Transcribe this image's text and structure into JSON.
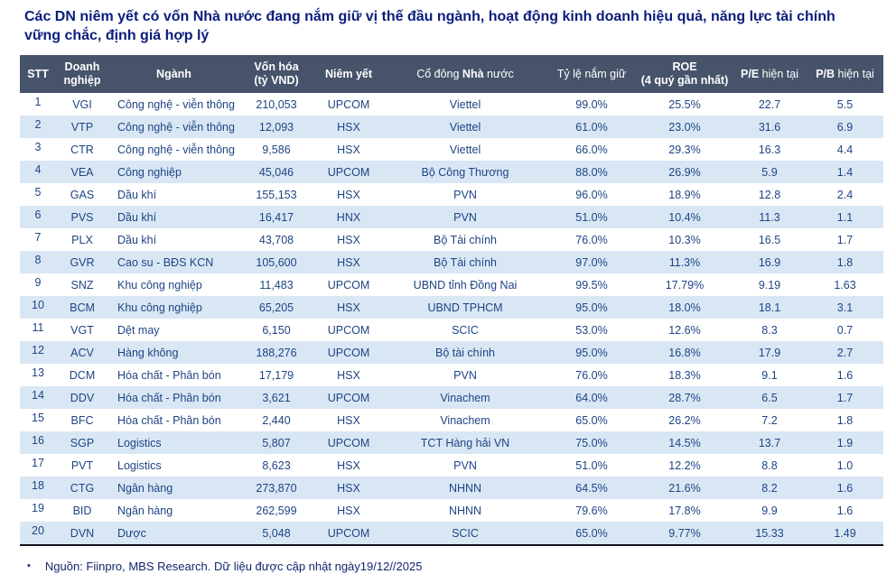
{
  "title": "Các DN niêm yết có vốn Nhà nước đang nắm giữ vị thế đầu ngành, hoạt động kinh doanh hiệu quả, năng lực tài chính vững chắc, định giá hợp lý",
  "colors": {
    "title_text": "#0a1d7c",
    "header_bg": "#46536a",
    "header_text": "#ffffff",
    "row_stripe": "#d9e7f5",
    "body_text": "#1e4483",
    "table_bottom_border": "#13131d"
  },
  "table": {
    "columns": [
      {
        "id": "stt",
        "parts": [
          {
            "t": "STT",
            "b": true
          }
        ]
      },
      {
        "id": "ticker",
        "parts": [
          {
            "t": "Doanh\nnghiệp",
            "b": true
          }
        ]
      },
      {
        "id": "nganh",
        "parts": [
          {
            "t": "Ngành",
            "b": true
          }
        ]
      },
      {
        "id": "vonhoa",
        "parts": [
          {
            "t": "Vốn hóa\n(tỷ VND)",
            "b": true
          }
        ]
      },
      {
        "id": "niemyet",
        "parts": [
          {
            "t": "Niêm yết",
            "b": true
          }
        ]
      },
      {
        "id": "codong",
        "parts": [
          {
            "t": "Cổ đông ",
            "b": false
          },
          {
            "t": "Nhà",
            "b": true
          },
          {
            "t": " nước",
            "b": false
          }
        ]
      },
      {
        "id": "tyle",
        "parts": [
          {
            "t": "Tỷ lệ nắm giữ",
            "b": false
          }
        ]
      },
      {
        "id": "roe",
        "parts": [
          {
            "t": "ROE\n(4 quý gần nhất)",
            "b": true
          }
        ]
      },
      {
        "id": "pe",
        "parts": [
          {
            "t": "P/E",
            "b": true
          },
          {
            "t": " hiện tại",
            "b": false
          }
        ]
      },
      {
        "id": "pb",
        "parts": [
          {
            "t": "P/B",
            "b": true
          },
          {
            "t": " hiện tại",
            "b": false
          }
        ]
      }
    ],
    "rows": [
      [
        "1",
        "VGI",
        "Công nghệ - viễn thông",
        "210,053",
        "UPCOM",
        "Viettel",
        "99.0%",
        "25.5%",
        "22.7",
        "5.5"
      ],
      [
        "2",
        "VTP",
        "Công nghệ - viễn thông",
        "12,093",
        "HSX",
        "Viettel",
        "61.0%",
        "23.0%",
        "31.6",
        "6.9"
      ],
      [
        "3",
        "CTR",
        "Công nghệ - viễn thông",
        "9,586",
        "HSX",
        "Viettel",
        "66.0%",
        "29.3%",
        "16.3",
        "4.4"
      ],
      [
        "4",
        "VEA",
        "Công nghiệp",
        "45,046",
        "UPCOM",
        "Bộ Công Thương",
        "88.0%",
        "26.9%",
        "5.9",
        "1.4"
      ],
      [
        "5",
        "GAS",
        "Dầu khí",
        "155,153",
        "HSX",
        "PVN",
        "96.0%",
        "18.9%",
        "12.8",
        "2.4"
      ],
      [
        "6",
        "PVS",
        "Dầu khí",
        "16,417",
        "HNX",
        "PVN",
        "51.0%",
        "10.4%",
        "11.3",
        "1.1"
      ],
      [
        "7",
        "PLX",
        "Dầu khí",
        "43,708",
        "HSX",
        "Bộ Tài chính",
        "76.0%",
        "10.3%",
        "16.5",
        "1.7"
      ],
      [
        "8",
        "GVR",
        "Cao su - BĐS KCN",
        "105,600",
        "HSX",
        "Bộ Tài chính",
        "97.0%",
        "11.3%",
        "16.9",
        "1.8"
      ],
      [
        "9",
        "SNZ",
        "Khu công nghiệp",
        "11,483",
        "UPCOM",
        "UBND tỉnh Đồng Nai",
        "99.5%",
        "17.79%",
        "9.19",
        "1.63"
      ],
      [
        "10",
        "BCM",
        "Khu công nghiệp",
        "65,205",
        "HSX",
        "UBND TPHCM",
        "95.0%",
        "18.0%",
        "18.1",
        "3.1"
      ],
      [
        "11",
        "VGT",
        "Dệt may",
        "6,150",
        "UPCOM",
        "SCIC",
        "53.0%",
        "12.6%",
        "8.3",
        "0.7"
      ],
      [
        "12",
        "ACV",
        "Hàng không",
        "188,276",
        "UPCOM",
        "Bộ tài chính",
        "95.0%",
        "16.8%",
        "17.9",
        "2.7"
      ],
      [
        "13",
        "DCM",
        "Hóa chất - Phân bón",
        "17,179",
        "HSX",
        "PVN",
        "76.0%",
        "18.3%",
        "9.1",
        "1.6"
      ],
      [
        "14",
        "DDV",
        "Hóa chất - Phân bón",
        "3,621",
        "UPCOM",
        "Vinachem",
        "64.0%",
        "28.7%",
        "6.5",
        "1.7"
      ],
      [
        "15",
        "BFC",
        "Hóa chất - Phân bón",
        "2,440",
        "HSX",
        "Vinachem",
        "65.0%",
        "26.2%",
        "7.2",
        "1.8"
      ],
      [
        "16",
        "SGP",
        "Logistics",
        "5,807",
        "UPCOM",
        "TCT Hàng hải VN",
        "75.0%",
        "14.5%",
        "13.7",
        "1.9"
      ],
      [
        "17",
        "PVT",
        "Logistics",
        "8,623",
        "HSX",
        "PVN",
        "51.0%",
        "12.2%",
        "8.8",
        "1.0"
      ],
      [
        "18",
        "CTG",
        "Ngân hàng",
        "273,870",
        "HSX",
        "NHNN",
        "64.5%",
        "21.6%",
        "8.2",
        "1.6"
      ],
      [
        "19",
        "BID",
        "Ngân hàng",
        "262,599",
        "HSX",
        "NHNN",
        "79.6%",
        "17.8%",
        "9.9",
        "1.6"
      ],
      [
        "20",
        "DVN",
        "Dược",
        "5,048",
        "UPCOM",
        "SCIC",
        "65.0%",
        "9.77%",
        "15.33",
        "1.49"
      ]
    ]
  },
  "footer": {
    "bullet": "•",
    "note": "Nguồn: Fiinpro, MBS Research. Dữ liệu được cập nhật ngày19/12//2025"
  }
}
